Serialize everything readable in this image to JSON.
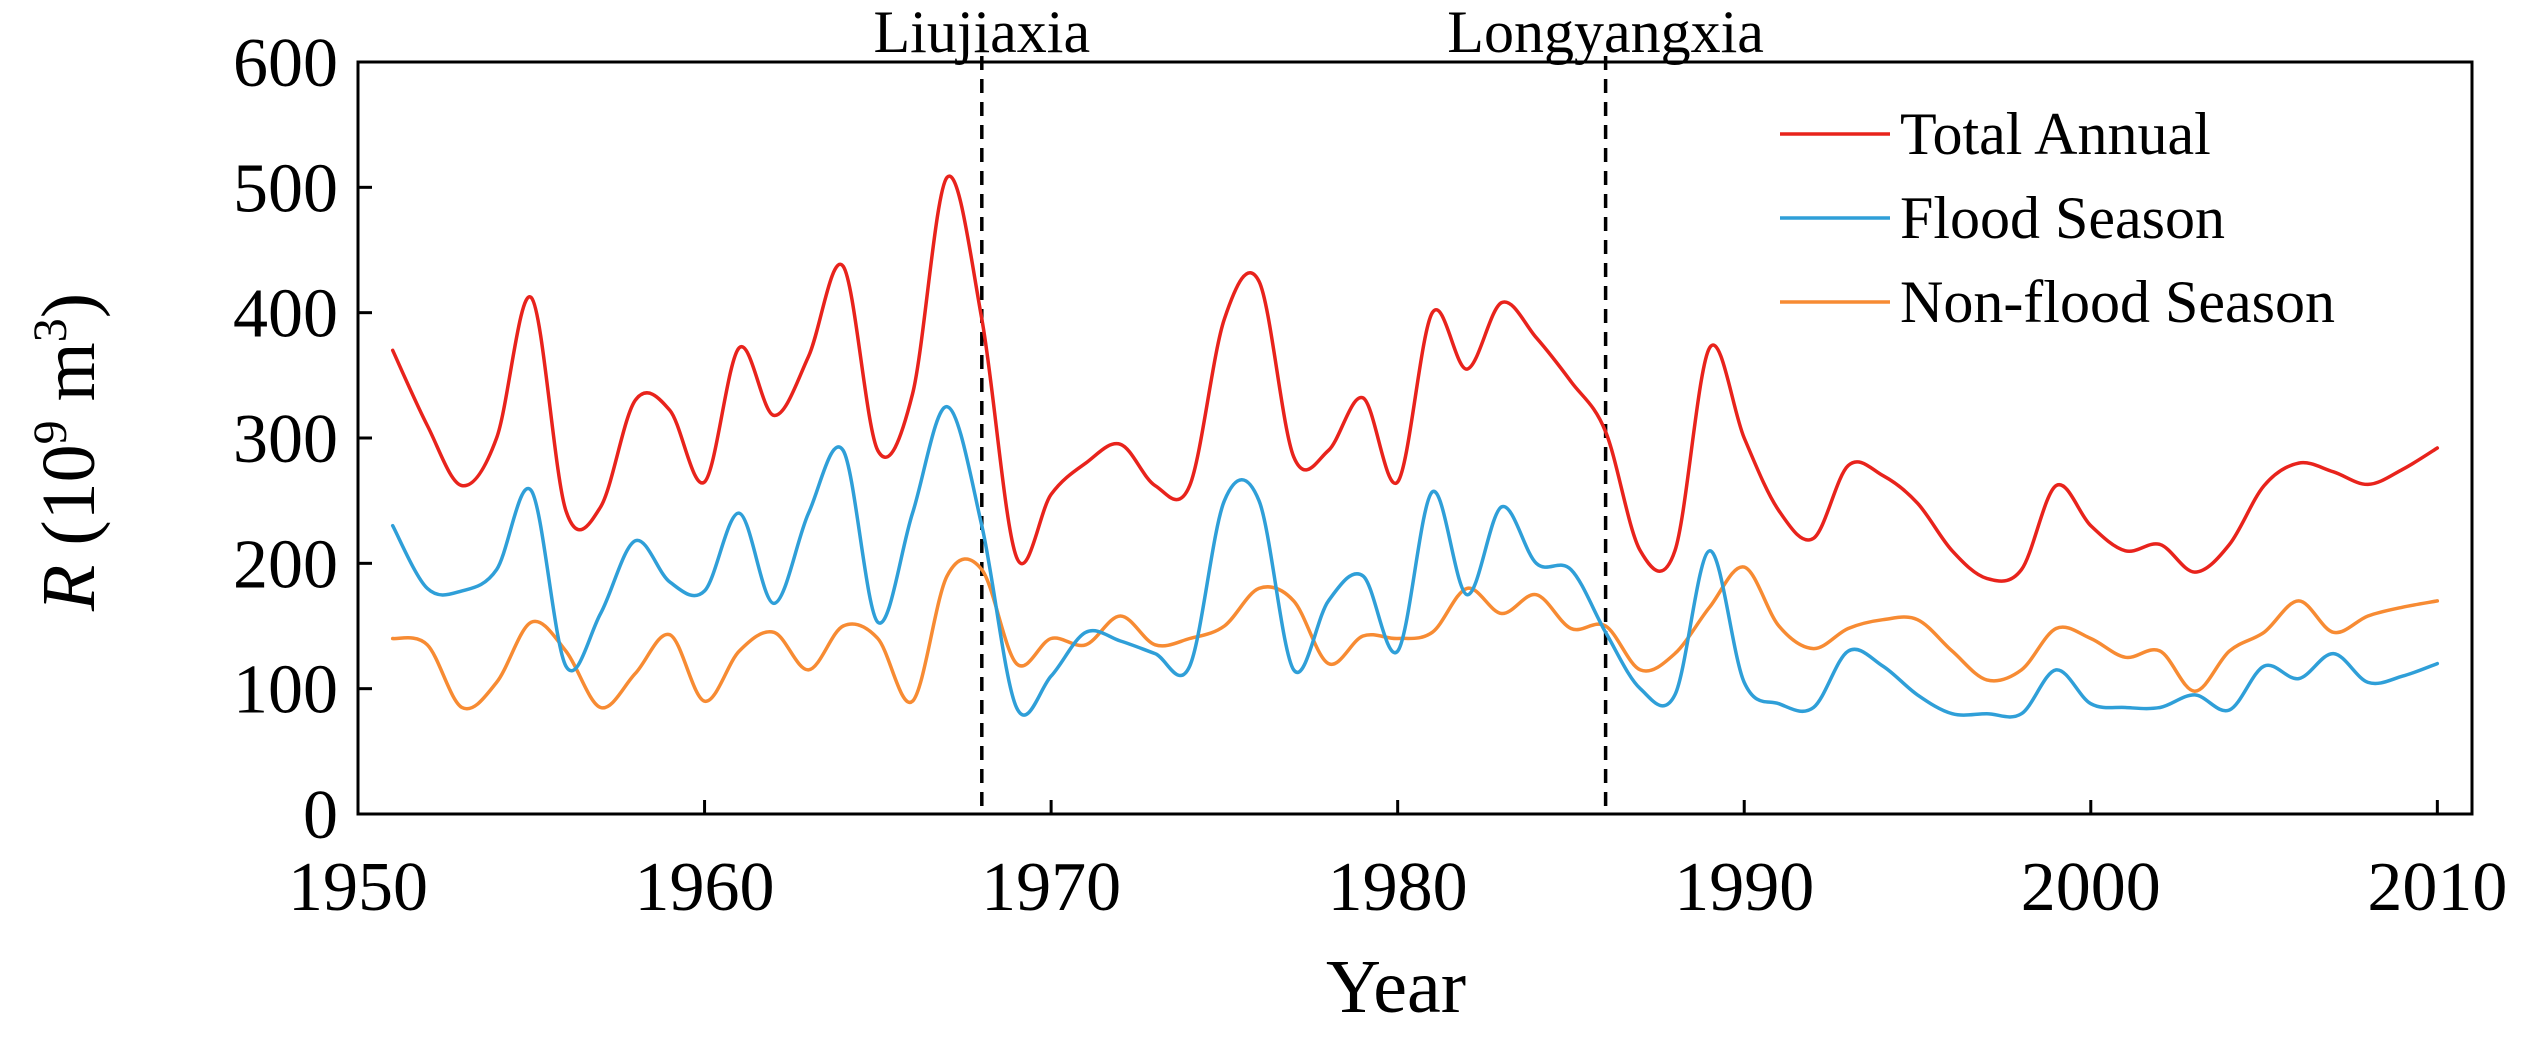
{
  "chart_data": {
    "type": "line",
    "title": "",
    "xlabel": "Year",
    "ylabel_prefix": "R",
    "ylabel_unit_open": " (10",
    "ylabel_unit_exp1": "9",
    "ylabel_unit_mid": " m",
    "ylabel_unit_exp2": "3",
    "ylabel_unit_close": ")",
    "xlim": [
      1950,
      2011
    ],
    "ylim": [
      0,
      600
    ],
    "xticks": [
      1950,
      1960,
      1970,
      1980,
      1990,
      2000,
      2010
    ],
    "yticks": [
      0,
      100,
      200,
      300,
      400,
      500,
      600
    ],
    "grid": false,
    "legend_position": "top-right",
    "x": [
      1951,
      1952,
      1953,
      1954,
      1955,
      1956,
      1957,
      1958,
      1959,
      1960,
      1961,
      1962,
      1963,
      1964,
      1965,
      1966,
      1967,
      1968,
      1969,
      1970,
      1971,
      1972,
      1973,
      1974,
      1975,
      1976,
      1977,
      1978,
      1979,
      1980,
      1981,
      1982,
      1983,
      1984,
      1985,
      1986,
      1987,
      1988,
      1989,
      1990,
      1991,
      1992,
      1993,
      1994,
      1995,
      1996,
      1997,
      1998,
      1999,
      2000,
      2001,
      2002,
      2003,
      2004,
      2005,
      2006,
      2007,
      2008,
      2009,
      2010
    ],
    "series": [
      {
        "name": "Total Annual",
        "color": "#e8231c",
        "values": [
          370,
          310,
          262,
          300,
          412,
          242,
          245,
          330,
          322,
          265,
          372,
          318,
          365,
          437,
          290,
          335,
          508,
          395,
          205,
          255,
          280,
          295,
          262,
          262,
          395,
          425,
          285,
          290,
          332,
          265,
          400,
          355,
          408,
          380,
          345,
          305,
          210,
          210,
          372,
          300,
          242,
          220,
          278,
          270,
          248,
          210,
          188,
          195,
          262,
          230,
          210,
          215,
          193,
          215,
          262,
          280,
          273,
          263,
          275,
          292
        ]
      },
      {
        "name": "Flood Season",
        "color": "#2f9fd8",
        "values": [
          230,
          180,
          178,
          195,
          258,
          118,
          160,
          218,
          185,
          178,
          240,
          168,
          240,
          290,
          153,
          240,
          325,
          230,
          85,
          110,
          145,
          138,
          128,
          118,
          250,
          250,
          115,
          170,
          190,
          130,
          257,
          175,
          245,
          200,
          195,
          145,
          100,
          95,
          210,
          105,
          88,
          85,
          130,
          118,
          95,
          80,
          80,
          80,
          115,
          88,
          85,
          85,
          95,
          83,
          118,
          108,
          128,
          105,
          110,
          120
        ]
      },
      {
        "name": "Non-flood Season",
        "color": "#f78b33",
        "values": [
          140,
          135,
          85,
          105,
          153,
          130,
          85,
          112,
          143,
          90,
          130,
          145,
          115,
          150,
          140,
          90,
          190,
          195,
          120,
          140,
          135,
          158,
          135,
          140,
          150,
          180,
          170,
          120,
          142,
          140,
          145,
          180,
          160,
          175,
          148,
          150,
          115,
          128,
          165,
          197,
          150,
          132,
          148,
          155,
          155,
          130,
          107,
          115,
          148,
          140,
          125,
          130,
          98,
          130,
          145,
          170,
          145,
          158,
          165,
          170
        ]
      }
    ],
    "annotations": [
      {
        "label": "Liujiaxia",
        "x": 1968,
        "style": "dashed-vertical"
      },
      {
        "label": "Longyangxia",
        "x": 1986,
        "style": "dashed-vertical"
      }
    ]
  }
}
